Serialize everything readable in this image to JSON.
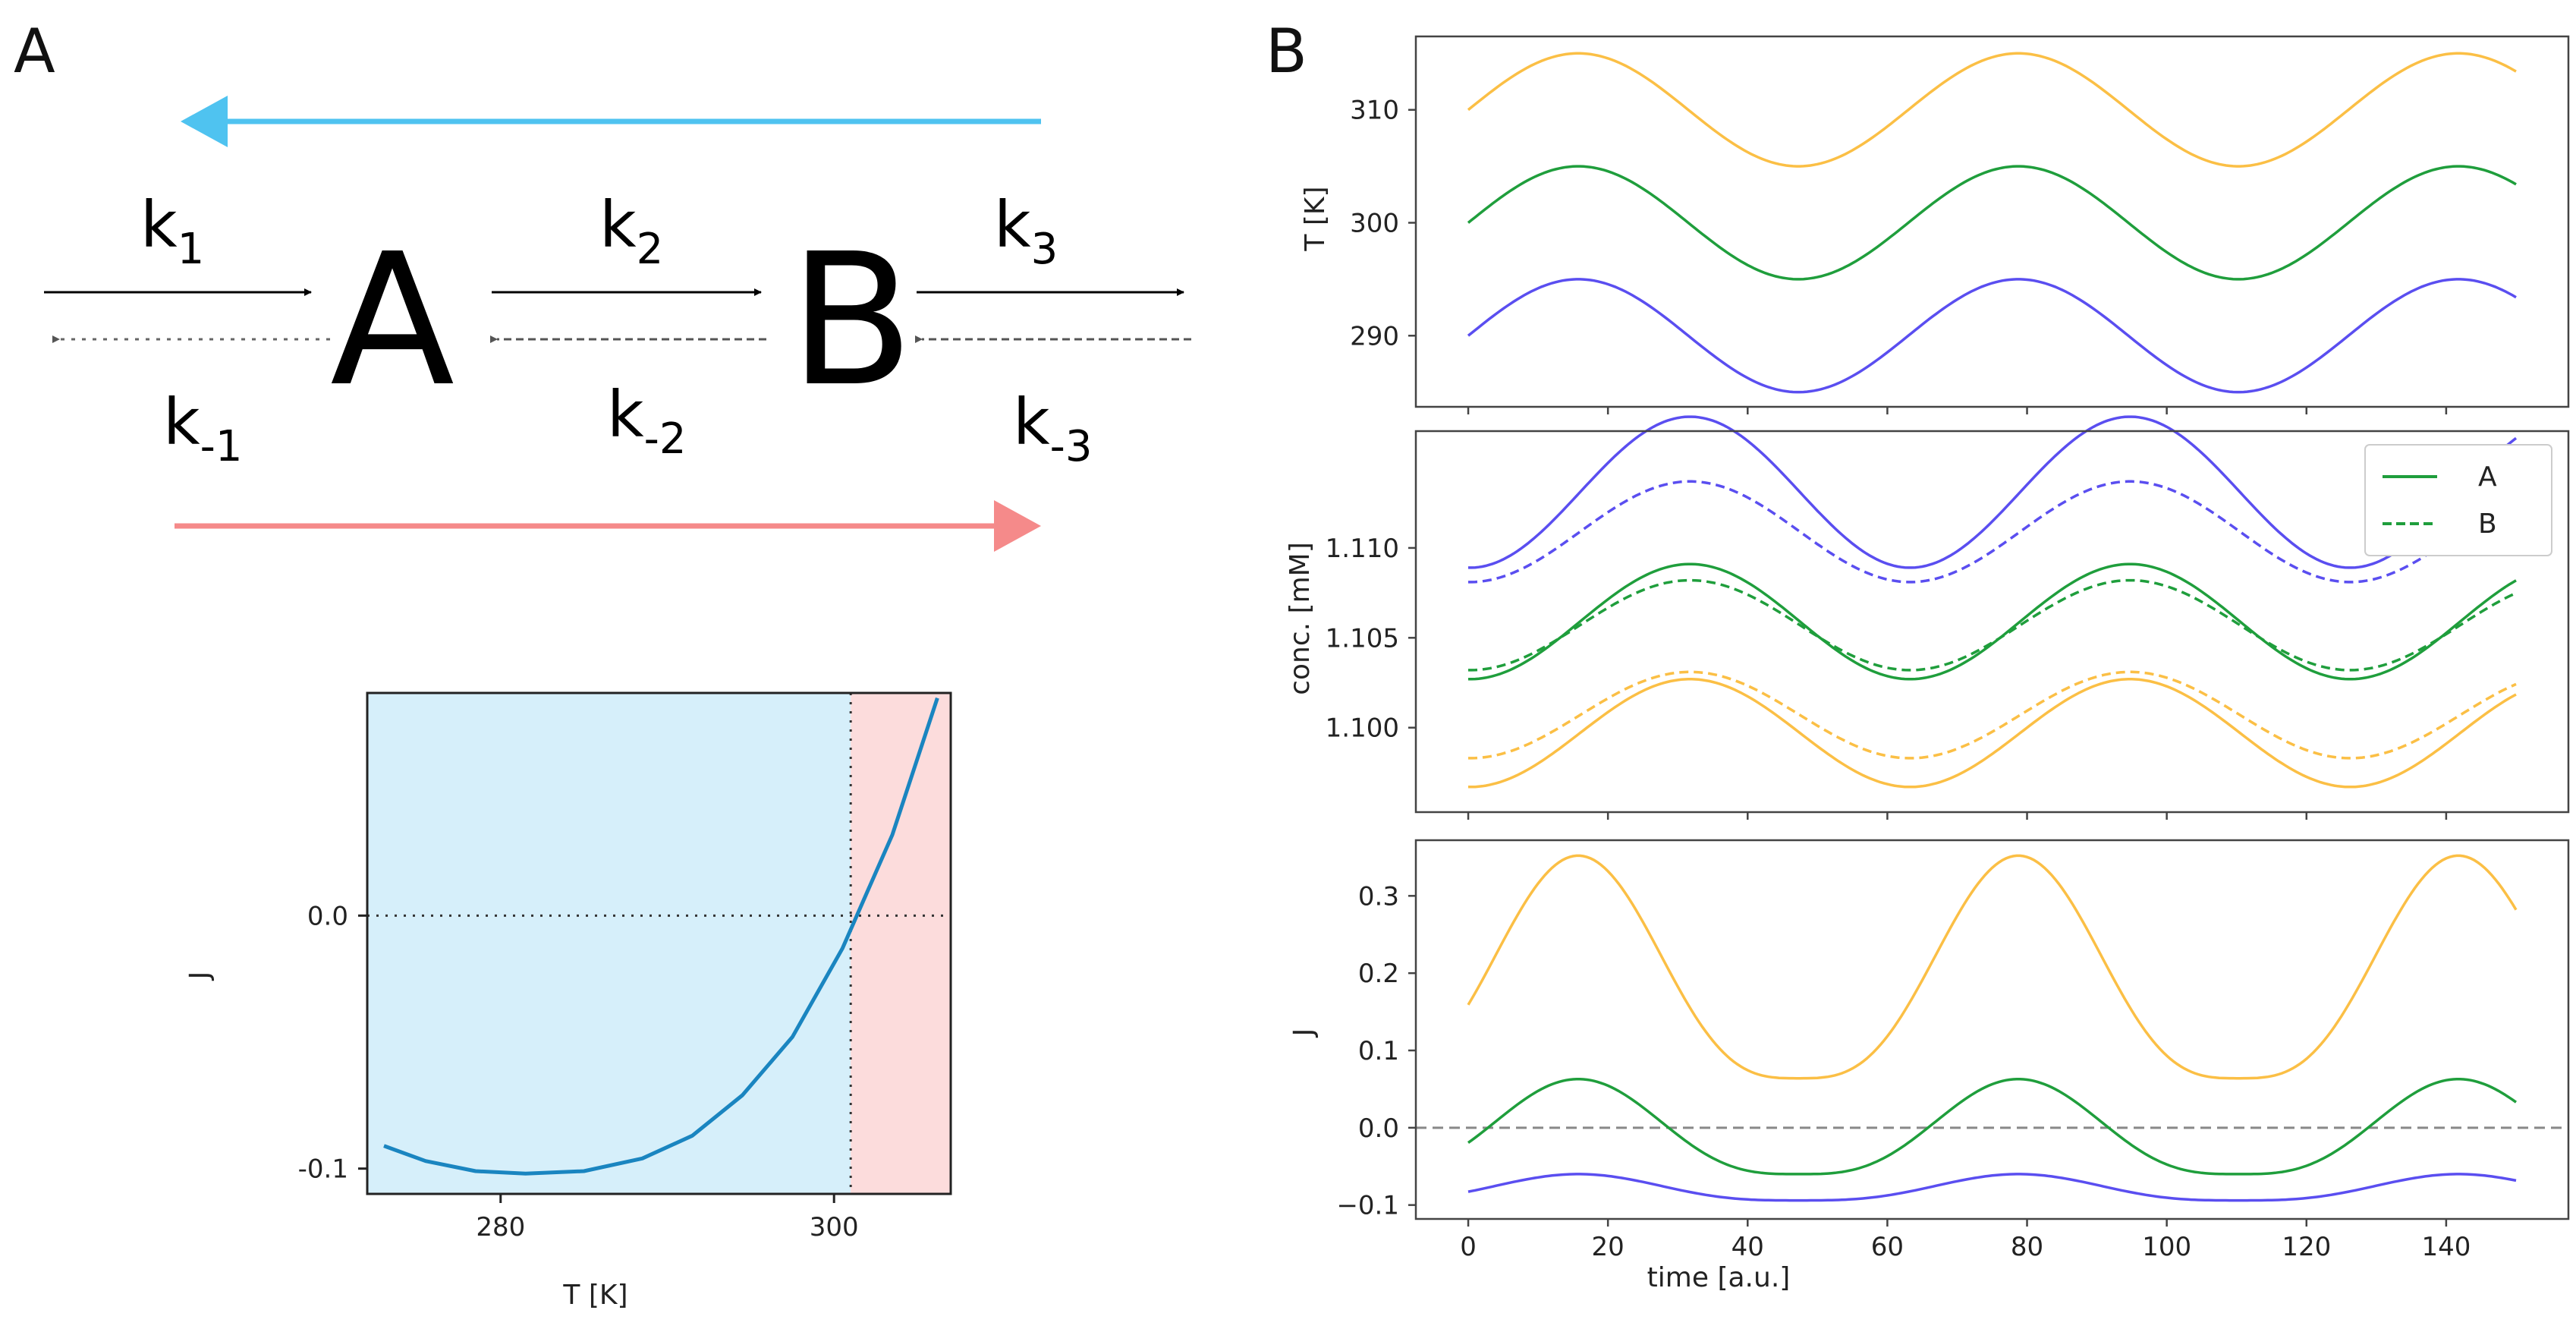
{
  "panel_labels": [
    "A",
    "B"
  ],
  "scheme": {
    "species": [
      "A",
      "B"
    ],
    "rate_constants": [
      {
        "base": "k",
        "sub": "1"
      },
      {
        "base": "k",
        "sub": "-1"
      },
      {
        "base": "k",
        "sub": "2"
      },
      {
        "base": "k",
        "sub": "-2"
      },
      {
        "base": "k",
        "sub": "3"
      },
      {
        "base": "k",
        "sub": "-3"
      }
    ],
    "colors": {
      "reverse_arrow": "#4fc3f0",
      "forward_arrow": "#f58a8a"
    }
  },
  "colors": {
    "blue": "#5a4ef0",
    "green": "#1f9e3c",
    "orange": "#fbbf45",
    "flux_line": "#1a85c0",
    "neg_region": "#d6effa",
    "pos_region": "#fcdcdc"
  },
  "chart_data": [
    {
      "id": "flux_vs_T",
      "type": "line",
      "xlabel": "T [K]",
      "ylabel": "J",
      "xlim": [
        272,
        307
      ],
      "ylim": [
        -0.11,
        0.088
      ],
      "xticks": [
        280,
        300
      ],
      "xtick_labels": [
        "280",
        "300"
      ],
      "yticks": [
        0.0,
        -0.1
      ],
      "ytick_labels": [
        "0.0",
        "-0.1"
      ],
      "zero_temperature": 301,
      "x": [
        273,
        275.5,
        278.5,
        281.5,
        285,
        288.5,
        291.5,
        294.5,
        297.5,
        300.5,
        303.5,
        306.2
      ],
      "y": [
        -0.091,
        -0.097,
        -0.101,
        -0.102,
        -0.101,
        -0.096,
        -0.087,
        -0.071,
        -0.048,
        -0.013,
        0.032,
        0.086
      ],
      "grid": false
    },
    {
      "id": "temperature",
      "type": "line",
      "ylabel": "T [K]",
      "xlim": [
        -7.5,
        157.5
      ],
      "ylim": [
        283.7,
        316.5
      ],
      "yticks": [
        290,
        300,
        310
      ],
      "ytick_labels": [
        "290",
        "300",
        "310"
      ],
      "period": 63,
      "t_end": 150,
      "series": [
        {
          "color": "blue",
          "mean": 290,
          "amplitude": 5
        },
        {
          "color": "green",
          "mean": 300,
          "amplitude": 5
        },
        {
          "color": "orange",
          "mean": 310,
          "amplitude": 5
        }
      ]
    },
    {
      "id": "concentration",
      "type": "line",
      "ylabel": "conc. [mM]",
      "xlim": [
        -7.5,
        157.5
      ],
      "ylim": [
        1.0953,
        1.1165
      ],
      "yticks": [
        1.1,
        1.105,
        1.11
      ],
      "ytick_labels": [
        "1.100",
        "1.105",
        "1.110"
      ],
      "period": 63,
      "t_end": 150,
      "legend": {
        "position": "top-right",
        "entries": [
          "A",
          "B"
        ]
      },
      "series": [
        {
          "color": "blue",
          "species": "A",
          "mean": 1.1131,
          "amplitude": 0.0042,
          "phase_shift": 16
        },
        {
          "color": "blue",
          "species": "B",
          "mean": 1.1109,
          "amplitude": 0.0028,
          "phase_shift": 16
        },
        {
          "color": "green",
          "species": "A",
          "mean": 1.1059,
          "amplitude": 0.0032,
          "phase_shift": 16
        },
        {
          "color": "green",
          "species": "B",
          "mean": 1.1057,
          "amplitude": 0.0025,
          "phase_shift": 16
        },
        {
          "color": "orange",
          "species": "A",
          "mean": 1.0997,
          "amplitude": 0.003,
          "phase_shift": 16
        },
        {
          "color": "orange",
          "species": "B",
          "mean": 1.1007,
          "amplitude": 0.0024,
          "phase_shift": 16
        }
      ]
    },
    {
      "id": "flux_vs_time",
      "type": "line",
      "xlabel": "time [a.u.]",
      "ylabel": "J",
      "xlim": [
        -7.5,
        157.5
      ],
      "ylim": [
        -0.118,
        0.372
      ],
      "xticks": [
        0,
        20,
        40,
        60,
        80,
        100,
        120,
        140
      ],
      "xtick_labels": [
        "0",
        "20",
        "40",
        "60",
        "80",
        "100",
        "120",
        "140"
      ],
      "yticks": [
        -0.1,
        0.0,
        0.1,
        0.2,
        0.3
      ],
      "ytick_labels": [
        "−0.1",
        "0.0",
        "0.1",
        "0.2",
        "0.3"
      ],
      "period": 63,
      "t_end": 150,
      "series": [
        {
          "color": "blue",
          "min": -0.094,
          "max": -0.06
        },
        {
          "color": "green",
          "min": -0.06,
          "max": 0.063
        },
        {
          "color": "orange",
          "min": 0.064,
          "max": 0.352
        }
      ]
    }
  ]
}
